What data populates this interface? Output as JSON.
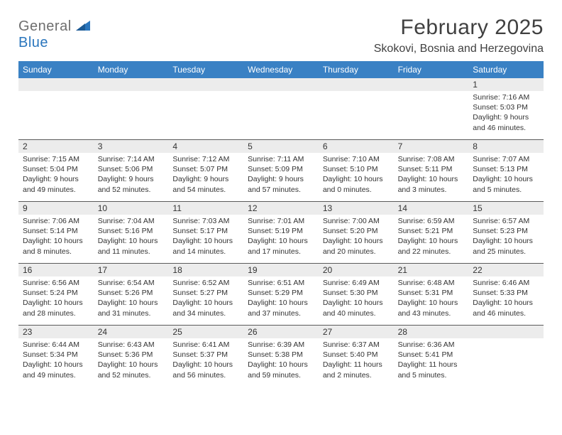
{
  "brand": {
    "word1": "General",
    "word2": "Blue"
  },
  "title": "February 2025",
  "location": "Skokovi, Bosnia and Herzegovina",
  "colors": {
    "header_bg": "#3a81c4",
    "header_text": "#ffffff",
    "daynum_bg": "#ececec",
    "text": "#333333",
    "rule": "#5b5b5b",
    "brand_gray": "#6e6e6e",
    "brand_blue": "#2b76bd"
  },
  "day_labels": [
    "Sunday",
    "Monday",
    "Tuesday",
    "Wednesday",
    "Thursday",
    "Friday",
    "Saturday"
  ],
  "weeks": [
    [
      {
        "day": "",
        "sunrise": "",
        "sunset": "",
        "daylight": ""
      },
      {
        "day": "",
        "sunrise": "",
        "sunset": "",
        "daylight": ""
      },
      {
        "day": "",
        "sunrise": "",
        "sunset": "",
        "daylight": ""
      },
      {
        "day": "",
        "sunrise": "",
        "sunset": "",
        "daylight": ""
      },
      {
        "day": "",
        "sunrise": "",
        "sunset": "",
        "daylight": ""
      },
      {
        "day": "",
        "sunrise": "",
        "sunset": "",
        "daylight": ""
      },
      {
        "day": "1",
        "sunrise": "Sunrise: 7:16 AM",
        "sunset": "Sunset: 5:03 PM",
        "daylight": "Daylight: 9 hours and 46 minutes."
      }
    ],
    [
      {
        "day": "2",
        "sunrise": "Sunrise: 7:15 AM",
        "sunset": "Sunset: 5:04 PM",
        "daylight": "Daylight: 9 hours and 49 minutes."
      },
      {
        "day": "3",
        "sunrise": "Sunrise: 7:14 AM",
        "sunset": "Sunset: 5:06 PM",
        "daylight": "Daylight: 9 hours and 52 minutes."
      },
      {
        "day": "4",
        "sunrise": "Sunrise: 7:12 AM",
        "sunset": "Sunset: 5:07 PM",
        "daylight": "Daylight: 9 hours and 54 minutes."
      },
      {
        "day": "5",
        "sunrise": "Sunrise: 7:11 AM",
        "sunset": "Sunset: 5:09 PM",
        "daylight": "Daylight: 9 hours and 57 minutes."
      },
      {
        "day": "6",
        "sunrise": "Sunrise: 7:10 AM",
        "sunset": "Sunset: 5:10 PM",
        "daylight": "Daylight: 10 hours and 0 minutes."
      },
      {
        "day": "7",
        "sunrise": "Sunrise: 7:08 AM",
        "sunset": "Sunset: 5:11 PM",
        "daylight": "Daylight: 10 hours and 3 minutes."
      },
      {
        "day": "8",
        "sunrise": "Sunrise: 7:07 AM",
        "sunset": "Sunset: 5:13 PM",
        "daylight": "Daylight: 10 hours and 5 minutes."
      }
    ],
    [
      {
        "day": "9",
        "sunrise": "Sunrise: 7:06 AM",
        "sunset": "Sunset: 5:14 PM",
        "daylight": "Daylight: 10 hours and 8 minutes."
      },
      {
        "day": "10",
        "sunrise": "Sunrise: 7:04 AM",
        "sunset": "Sunset: 5:16 PM",
        "daylight": "Daylight: 10 hours and 11 minutes."
      },
      {
        "day": "11",
        "sunrise": "Sunrise: 7:03 AM",
        "sunset": "Sunset: 5:17 PM",
        "daylight": "Daylight: 10 hours and 14 minutes."
      },
      {
        "day": "12",
        "sunrise": "Sunrise: 7:01 AM",
        "sunset": "Sunset: 5:19 PM",
        "daylight": "Daylight: 10 hours and 17 minutes."
      },
      {
        "day": "13",
        "sunrise": "Sunrise: 7:00 AM",
        "sunset": "Sunset: 5:20 PM",
        "daylight": "Daylight: 10 hours and 20 minutes."
      },
      {
        "day": "14",
        "sunrise": "Sunrise: 6:59 AM",
        "sunset": "Sunset: 5:21 PM",
        "daylight": "Daylight: 10 hours and 22 minutes."
      },
      {
        "day": "15",
        "sunrise": "Sunrise: 6:57 AM",
        "sunset": "Sunset: 5:23 PM",
        "daylight": "Daylight: 10 hours and 25 minutes."
      }
    ],
    [
      {
        "day": "16",
        "sunrise": "Sunrise: 6:56 AM",
        "sunset": "Sunset: 5:24 PM",
        "daylight": "Daylight: 10 hours and 28 minutes."
      },
      {
        "day": "17",
        "sunrise": "Sunrise: 6:54 AM",
        "sunset": "Sunset: 5:26 PM",
        "daylight": "Daylight: 10 hours and 31 minutes."
      },
      {
        "day": "18",
        "sunrise": "Sunrise: 6:52 AM",
        "sunset": "Sunset: 5:27 PM",
        "daylight": "Daylight: 10 hours and 34 minutes."
      },
      {
        "day": "19",
        "sunrise": "Sunrise: 6:51 AM",
        "sunset": "Sunset: 5:29 PM",
        "daylight": "Daylight: 10 hours and 37 minutes."
      },
      {
        "day": "20",
        "sunrise": "Sunrise: 6:49 AM",
        "sunset": "Sunset: 5:30 PM",
        "daylight": "Daylight: 10 hours and 40 minutes."
      },
      {
        "day": "21",
        "sunrise": "Sunrise: 6:48 AM",
        "sunset": "Sunset: 5:31 PM",
        "daylight": "Daylight: 10 hours and 43 minutes."
      },
      {
        "day": "22",
        "sunrise": "Sunrise: 6:46 AM",
        "sunset": "Sunset: 5:33 PM",
        "daylight": "Daylight: 10 hours and 46 minutes."
      }
    ],
    [
      {
        "day": "23",
        "sunrise": "Sunrise: 6:44 AM",
        "sunset": "Sunset: 5:34 PM",
        "daylight": "Daylight: 10 hours and 49 minutes."
      },
      {
        "day": "24",
        "sunrise": "Sunrise: 6:43 AM",
        "sunset": "Sunset: 5:36 PM",
        "daylight": "Daylight: 10 hours and 52 minutes."
      },
      {
        "day": "25",
        "sunrise": "Sunrise: 6:41 AM",
        "sunset": "Sunset: 5:37 PM",
        "daylight": "Daylight: 10 hours and 56 minutes."
      },
      {
        "day": "26",
        "sunrise": "Sunrise: 6:39 AM",
        "sunset": "Sunset: 5:38 PM",
        "daylight": "Daylight: 10 hours and 59 minutes."
      },
      {
        "day": "27",
        "sunrise": "Sunrise: 6:37 AM",
        "sunset": "Sunset: 5:40 PM",
        "daylight": "Daylight: 11 hours and 2 minutes."
      },
      {
        "day": "28",
        "sunrise": "Sunrise: 6:36 AM",
        "sunset": "Sunset: 5:41 PM",
        "daylight": "Daylight: 11 hours and 5 minutes."
      },
      {
        "day": "",
        "sunrise": "",
        "sunset": "",
        "daylight": ""
      }
    ]
  ]
}
